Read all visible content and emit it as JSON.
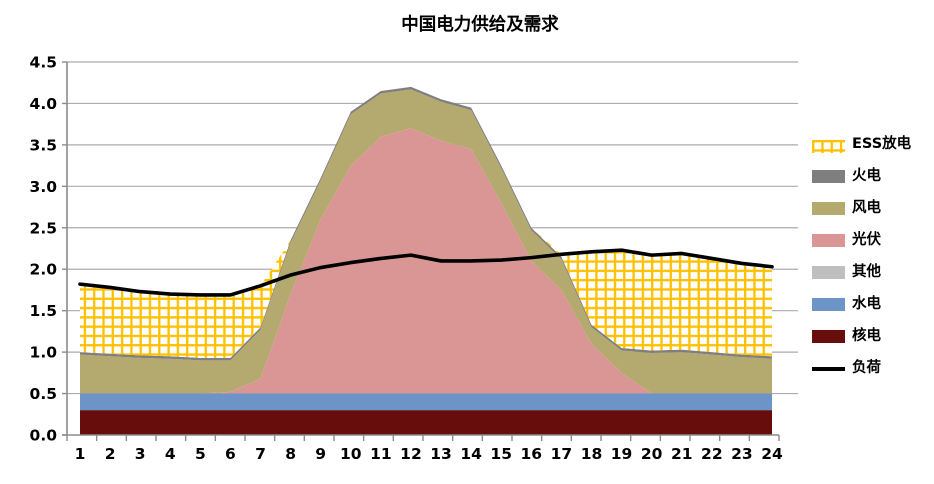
{
  "chart_data": {
    "type": "area",
    "stacked": true,
    "title": "中国电力供给及需求",
    "xlabel": "",
    "ylabel": "",
    "x": [
      1,
      2,
      3,
      4,
      5,
      6,
      7,
      8,
      9,
      10,
      11,
      12,
      13,
      14,
      15,
      16,
      17,
      18,
      19,
      20,
      21,
      22,
      23,
      24
    ],
    "ylim": [
      0,
      4.5
    ],
    "yticks": [
      "0.0",
      "0.5",
      "1.0",
      "1.5",
      "2.0",
      "2.5",
      "3.0",
      "3.5",
      "4.0",
      "4.5"
    ],
    "grid": true,
    "legend_position": "right",
    "series": [
      {
        "name": "核电",
        "type": "area",
        "color": "#670D0B",
        "values": [
          0.3,
          0.3,
          0.3,
          0.3,
          0.3,
          0.3,
          0.3,
          0.3,
          0.3,
          0.3,
          0.3,
          0.3,
          0.3,
          0.3,
          0.3,
          0.3,
          0.3,
          0.3,
          0.3,
          0.3,
          0.3,
          0.3,
          0.3,
          0.3
        ]
      },
      {
        "name": "水电",
        "type": "area",
        "color": "#6D94C6",
        "values": [
          0.2,
          0.2,
          0.2,
          0.2,
          0.2,
          0.2,
          0.2,
          0.2,
          0.2,
          0.2,
          0.2,
          0.2,
          0.2,
          0.2,
          0.2,
          0.2,
          0.2,
          0.2,
          0.2,
          0.2,
          0.2,
          0.2,
          0.2,
          0.2
        ]
      },
      {
        "name": "其他",
        "type": "area",
        "color": "#BFBFBF",
        "values": [
          0,
          0,
          0,
          0,
          0,
          0,
          0,
          0,
          0,
          0,
          0,
          0,
          0,
          0,
          0,
          0,
          0,
          0,
          0,
          0,
          0,
          0,
          0,
          0
        ]
      },
      {
        "name": "光伏",
        "type": "area",
        "color": "#DA9694",
        "values": [
          0,
          0,
          0,
          0,
          0,
          0.02,
          0.18,
          1.2,
          2.1,
          2.75,
          3.1,
          3.2,
          3.05,
          2.95,
          2.3,
          1.6,
          1.25,
          0.6,
          0.25,
          0,
          0,
          0,
          0,
          0
        ]
      },
      {
        "name": "风电",
        "type": "area",
        "color": "#B4AA70",
        "values": [
          0.47,
          0.45,
          0.43,
          0.42,
          0.4,
          0.38,
          0.59,
          0.62,
          0.47,
          0.62,
          0.52,
          0.47,
          0.47,
          0.47,
          0.42,
          0.37,
          0.37,
          0.2,
          0.27,
          0.49,
          0.5,
          0.47,
          0.44,
          0.42
        ]
      },
      {
        "name": "火电",
        "type": "area",
        "color": "#7F7F7F",
        "values": [
          0.03,
          0.03,
          0.03,
          0.03,
          0.03,
          0.03,
          0.03,
          0.03,
          0.03,
          0.03,
          0.03,
          0.03,
          0.03,
          0.03,
          0.03,
          0.03,
          0.03,
          0.03,
          0.03,
          0.03,
          0.03,
          0.03,
          0.03,
          0.03
        ]
      },
      {
        "name": "ESS放电",
        "type": "area",
        "color": "#FFC000",
        "pattern": "yellow-grid",
        "values": [
          0.82,
          0.8,
          0.77,
          0.75,
          0.76,
          0.76,
          0.5,
          0,
          0,
          0,
          0,
          0,
          0,
          0,
          0,
          0,
          0.03,
          0.88,
          1.18,
          1.15,
          1.16,
          1.13,
          1.1,
          1.08
        ]
      },
      {
        "name": "负荷",
        "type": "line",
        "color": "#000000",
        "values": [
          1.82,
          1.78,
          1.73,
          1.7,
          1.69,
          1.69,
          1.8,
          1.93,
          2.02,
          2.08,
          2.13,
          2.17,
          2.1,
          2.1,
          2.11,
          2.14,
          2.18,
          2.21,
          2.23,
          2.17,
          2.19,
          2.13,
          2.07,
          2.03
        ]
      }
    ],
    "legend": [
      "ESS放电",
      "火电",
      "风电",
      "光伏",
      "其他",
      "水电",
      "核电",
      "负荷"
    ],
    "colors": {
      "grid_line": "#ABABAB",
      "axis_line": "#8C8C8C",
      "tick_label": "#000000",
      "ess_pattern_bg": "#FFFFFF",
      "ess_pattern_line": "#FFC000"
    }
  }
}
